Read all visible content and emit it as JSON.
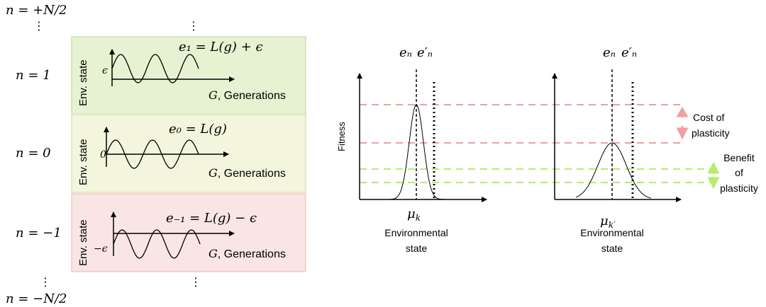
{
  "left": {
    "top_label": "n = +N/2",
    "bottom_label": "n = −N/2",
    "rows": [
      {
        "n_label": "n = 1",
        "y_axis": "Env. state",
        "equation": "e₁ = L(g) + ϵ",
        "offset_label": "ϵ",
        "x_axis_var": "G",
        "x_axis_text": ", Generations",
        "fill": "#e6f2d1",
        "stroke": "#b7d68f"
      },
      {
        "n_label": "n = 0",
        "y_axis": "Env. state",
        "equation": "e₀ = L(g)",
        "offset_label": "0",
        "x_axis_var": "G",
        "x_axis_text": ", Generations",
        "fill": "#f3f6dc",
        "stroke": "#cbd9a6"
      },
      {
        "n_label": "n = −1",
        "y_axis": "Env. state",
        "equation": "e₋₁ = L(g) − ϵ",
        "offset_label": "−ϵ",
        "x_axis_var": "G",
        "x_axis_text": ", Generations",
        "fill": "#f9e5e3",
        "stroke": "#eab7b2"
      }
    ]
  },
  "right": {
    "y_axis": "Fitness",
    "plots": [
      {
        "mu_label": "μ",
        "mu_sub": "k",
        "en_label": "eₙ",
        "en_prime_label": "e′ₙ",
        "x_axis_line1": "Environmental",
        "x_axis_line2": "state"
      },
      {
        "mu_label": "μ",
        "mu_sub": "k′",
        "en_label": "eₙ",
        "en_prime_label": "e′ₙ",
        "x_axis_line1": "Environmental",
        "x_axis_line2": "state"
      }
    ],
    "cost": {
      "line1": "Cost of",
      "line2": "plasticity",
      "color": "#f0a0a0"
    },
    "benefit": {
      "line1": "Benefit",
      "line2": "of",
      "line3": "plasticity",
      "color": "#b6ec6a"
    }
  }
}
